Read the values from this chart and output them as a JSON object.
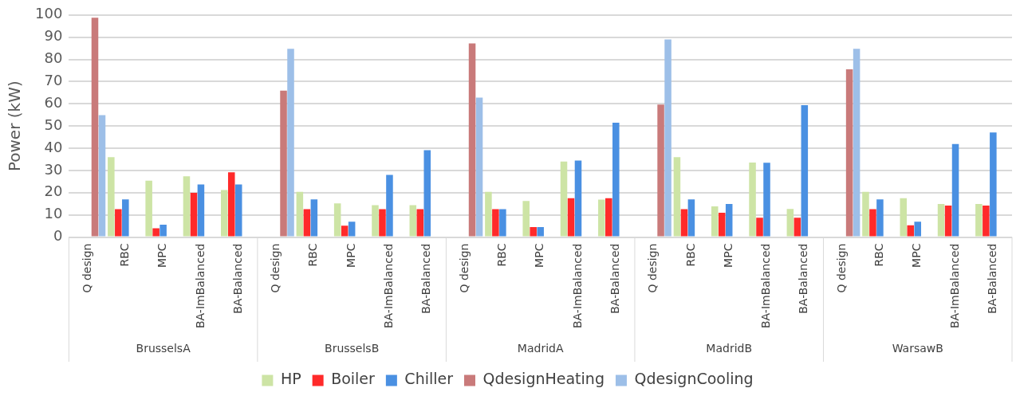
{
  "chart_data": {
    "type": "bar",
    "ylabel": "Power (kW)",
    "categories": [
      "Q design",
      "RBC",
      "MPC",
      "BA-ImBalanced",
      "BA-Balanced",
      "Q design",
      "RBC",
      "MPC",
      "BA-ImBalanced",
      "BA-Balanced",
      "Q design",
      "RBC",
      "MPC",
      "BA-ImBalanced",
      "BA-Balanced",
      "Q design",
      "RBC",
      "MPC",
      "BA-ImBalanced",
      "BA-Balanced",
      "Q design",
      "RBC",
      "MPC",
      "BA-ImBalanced",
      "BA-Balanced"
    ],
    "annotations": [
      "BrusselsA",
      "BrusselsB",
      "MadridA",
      "MadridB",
      "WarsawB"
    ],
    "series": [
      {
        "name": "HP",
        "color": "#cde4a5",
        "values": [
          null,
          36,
          25.4,
          27.4,
          21.2,
          null,
          20.4,
          15.2,
          14.4,
          14.4,
          null,
          20.4,
          16.3,
          34,
          16.9,
          null,
          36,
          13.8,
          33.6,
          12.7,
          null,
          20.4,
          17.5,
          14.9,
          14.9
        ]
      },
      {
        "name": "Boiler",
        "color": "#ff2a2a",
        "values": [
          null,
          12.6,
          4,
          19.9,
          29.2,
          null,
          12.6,
          5.1,
          12.6,
          12.6,
          null,
          12.6,
          4.5,
          17.5,
          17.5,
          null,
          12.6,
          11,
          8.7,
          8.7,
          null,
          12.6,
          5.3,
          14.2,
          14.2
        ]
      },
      {
        "name": "Chiller",
        "color": "#4a90e2",
        "values": [
          null,
          17,
          5.6,
          23.7,
          23.7,
          null,
          17,
          6.9,
          28,
          39.1,
          null,
          12.6,
          4.5,
          34.5,
          51.5,
          null,
          17,
          14.9,
          33.5,
          59.4,
          null,
          17,
          6.9,
          41.9,
          47.1
        ]
      },
      {
        "name": "QdesignHeating",
        "color": "#c97a7a",
        "values": [
          98.8,
          null,
          null,
          null,
          null,
          65.9,
          null,
          null,
          null,
          null,
          87.2,
          null,
          null,
          null,
          null,
          59.7,
          null,
          null,
          null,
          null,
          75.5,
          null,
          null,
          null,
          null
        ]
      },
      {
        "name": "QdesignCooling",
        "color": "#9dbfe8",
        "values": [
          54.9,
          null,
          null,
          null,
          null,
          84.8,
          null,
          null,
          null,
          null,
          62.8,
          null,
          null,
          null,
          null,
          89,
          null,
          null,
          null,
          null,
          84.8,
          null,
          null,
          null,
          null
        ]
      }
    ],
    "ylim": [
      0,
      100
    ],
    "yticks": [
      0,
      10,
      20,
      30,
      40,
      50,
      60,
      70,
      80,
      90,
      100
    ],
    "grid": "y",
    "legend": "bottom"
  }
}
